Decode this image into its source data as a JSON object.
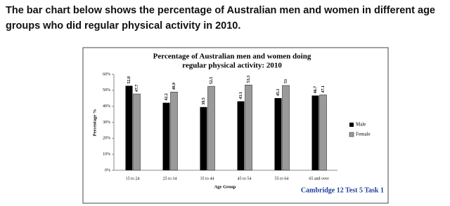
{
  "heading": "The bar chart below shows the percentage of Australian men and women in different age groups who did regular physical activity in 2010.",
  "caption": "Cambridge 12 Test 5 Task 1",
  "chart_data": {
    "type": "bar",
    "title": [
      "Percentage of Australian men and women doing",
      "regular physical activity: 2010"
    ],
    "x_label": "Age Group",
    "y_label": "Percentage %",
    "categories": [
      "15 to 24",
      "25 to 34",
      "35 to 44",
      "45 to 54",
      "55 to 64",
      "65 and over"
    ],
    "series": [
      {
        "name": "Male",
        "color": "#000000",
        "values": [
          52.8,
          42.2,
          39.5,
          43.1,
          45.1,
          46.7
        ]
      },
      {
        "name": "Female",
        "color": "#9a9a9a",
        "values": [
          47.7,
          48.9,
          52.5,
          53.3,
          53,
          47.1
        ]
      }
    ],
    "ylim": [
      0,
      60
    ],
    "yticks": [
      {
        "value": 0,
        "label": "0%"
      },
      {
        "value": 10,
        "label": "10%"
      },
      {
        "value": 20,
        "label": "20%"
      },
      {
        "value": 30,
        "label": "30%"
      },
      {
        "value": 40,
        "label": "40%"
      },
      {
        "value": 50,
        "label": "50%"
      },
      {
        "value": 60,
        "label": "60%"
      }
    ],
    "grid": false,
    "legend": "right"
  }
}
